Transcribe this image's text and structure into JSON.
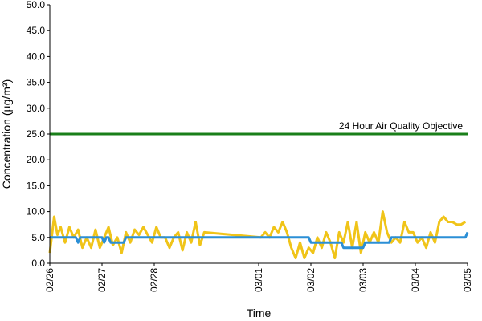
{
  "chart_data": {
    "type": "line",
    "xlabel": "Time",
    "ylabel": "Concentration (µg/m³)",
    "ylim": [
      0,
      50
    ],
    "yticks": [
      "0.0",
      "5.0",
      "10.0",
      "15.0",
      "20.0",
      "25.0",
      "30.0",
      "35.0",
      "40.0",
      "45.0",
      "50.0"
    ],
    "xlim": [
      "02/26",
      "03/05"
    ],
    "xticks": [
      "02/26",
      "02/27",
      "02/28",
      "03/01",
      "03/02",
      "03/03",
      "03/04",
      "03/05"
    ],
    "grid": false,
    "legend": "none",
    "objective": {
      "label": "24 Hour Air Quality Objective",
      "value": 25.0,
      "color": "#1a7f1a"
    },
    "series": [
      {
        "color": "#f0c419",
        "x": [
          "02/26 00:00",
          "02/26 02:00",
          "02/26 03:30",
          "02/26 05:00",
          "02/26 07:00",
          "02/26 09:00",
          "02/26 11:00",
          "02/26 13:00",
          "02/26 15:00",
          "02/26 17:00",
          "02/26 19:00",
          "02/26 21:00",
          "02/26 23:00",
          "02/27 01:00",
          "02/27 03:00",
          "02/27 05:00",
          "02/27 07:00",
          "02/27 09:00",
          "02/27 11:00",
          "02/27 13:00",
          "02/27 15:00",
          "02/27 17:00",
          "02/27 19:00",
          "02/27 21:00",
          "02/27 23:00",
          "02/28 01:00",
          "02/28 03:00",
          "02/28 05:00",
          "02/28 07:00",
          "02/28 09:00",
          "02/28 11:00",
          "02/28 13:00",
          "02/28 15:00",
          "02/28 17:00",
          "02/28 19:00",
          "02/28 21:00",
          "02/28 23:00",
          "03/01 01:00",
          "03/01 03:00",
          "03/01 05:00",
          "03/01 07:00",
          "03/01 09:00",
          "03/01 11:00",
          "03/01 13:00",
          "03/01 15:00",
          "03/01 17:00",
          "03/01 19:00",
          "03/01 21:00",
          "03/01 23:00",
          "03/02 01:00",
          "03/02 03:00",
          "03/02 05:00",
          "03/02 07:00",
          "03/02 09:00",
          "03/02 11:00",
          "03/02 13:00",
          "03/02 15:00",
          "03/02 17:00",
          "03/02 19:00",
          "03/02 21:00",
          "03/02 23:00",
          "03/03 01:00",
          "03/03 03:00",
          "03/03 05:00",
          "03/03 07:00",
          "03/03 09:00",
          "03/03 11:00",
          "03/03 13:00",
          "03/03 15:00",
          "03/03 17:00",
          "03/03 19:00",
          "03/03 21:00",
          "03/03 23:00",
          "03/04 01:00",
          "03/04 03:00",
          "03/04 05:00",
          "03/04 07:00",
          "03/04 09:00",
          "03/04 11:00",
          "03/04 13:00",
          "03/04 15:00",
          "03/04 17:00",
          "03/04 19:00",
          "03/04 21:00",
          "03/04 23:00"
        ],
        "values": [
          2.0,
          9.0,
          5.5,
          7.0,
          4.0,
          7.0,
          5.0,
          6.5,
          3.0,
          5.0,
          3.0,
          6.5,
          3.0,
          5.0,
          7.0,
          3.5,
          5.0,
          2.0,
          6.0,
          4.0,
          6.5,
          5.5,
          7.0,
          5.5,
          4.0,
          7.0,
          5.0,
          5.0,
          3.0,
          5.0,
          6.0,
          2.5,
          6.0,
          4.0,
          8.0,
          3.5,
          6.0,
          5.0,
          6.0,
          5.0,
          7.0,
          6.0,
          8.0,
          6.0,
          3.0,
          1.0,
          4.0,
          1.0,
          3.0,
          2.0,
          5.0,
          3.0,
          6.0,
          4.0,
          1.0,
          6.0,
          4.0,
          8.0,
          3.0,
          8.0,
          2.0,
          6.0,
          4.0,
          6.0,
          4.0,
          10.0,
          6.0,
          4.0,
          5.0,
          4.0,
          8.0,
          6.0,
          6.0,
          4.0,
          5.0,
          3.0,
          6.0,
          4.0,
          8.0,
          9.0,
          8.0,
          8.0,
          7.5,
          7.5,
          8.0
        ]
      },
      {
        "color": "#2b8fd6",
        "x": [
          "02/26 00:00",
          "02/26 12:00",
          "02/26 13:00",
          "02/26 14:00",
          "02/27 00:00",
          "02/27 01:00",
          "02/27 02:00",
          "02/27 03:00",
          "02/27 04:00",
          "02/27 10:00",
          "02/27 11:00",
          "02/28 00:00",
          "03/01 00:00",
          "03/01 23:00",
          "03/02 00:00",
          "03/02 01:00",
          "03/02 08:00",
          "03/02 09:00",
          "03/02 14:00",
          "03/02 15:00",
          "03/03 00:00",
          "03/03 01:00",
          "03/03 12:00",
          "03/03 13:00",
          "03/04 00:00",
          "03/04 01:00",
          "03/04 23:00",
          "03/05 00:00"
        ],
        "values": [
          5.0,
          5.0,
          4.0,
          5.0,
          5.0,
          4.0,
          5.0,
          5.0,
          4.0,
          4.0,
          5.0,
          5.0,
          5.0,
          5.0,
          4.0,
          4.0,
          4.0,
          4.0,
          4.0,
          3.0,
          3.0,
          4.0,
          4.0,
          5.0,
          5.0,
          5.0,
          5.0,
          6.0
        ]
      }
    ]
  }
}
